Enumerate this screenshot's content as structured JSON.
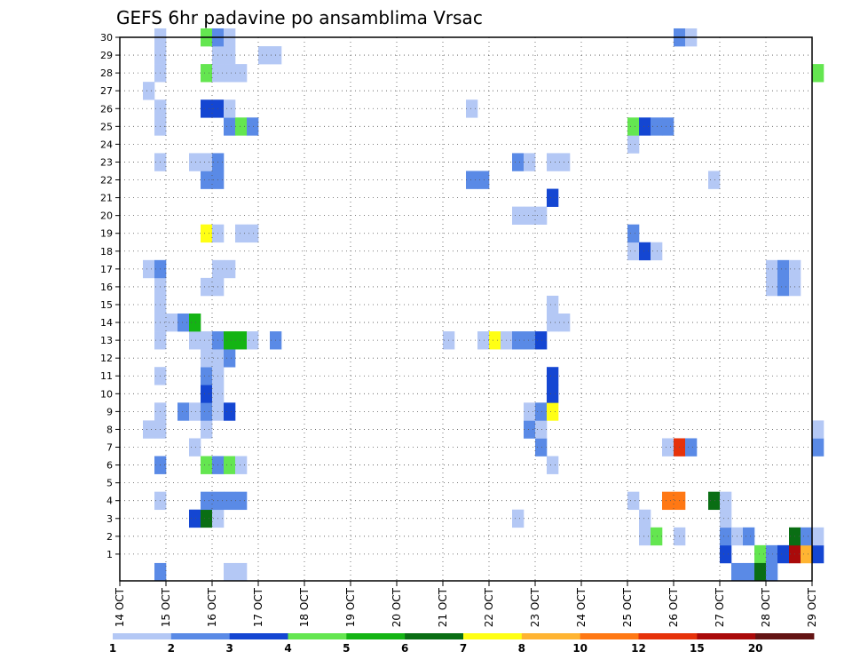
{
  "chart_data": {
    "type": "heatmap",
    "title": "GEFS 6hr padavine po ansamblima Vrsac",
    "xlabel": "",
    "ylabel": "",
    "x_range": [
      "14 OCT",
      "29 OCT"
    ],
    "y_range": [
      0,
      30
    ],
    "grid": true,
    "x_ticks": [
      "14 OCT",
      "15 OCT",
      "16 OCT",
      "17 OCT",
      "18 OCT",
      "19 OCT",
      "20 OCT",
      "21 OCT",
      "22 OCT",
      "23 OCT",
      "24 OCT",
      "25 OCT",
      "26 OCT",
      "27 OCT",
      "28 OCT",
      "29 OCT"
    ],
    "y_ticks": [
      1,
      2,
      3,
      4,
      5,
      6,
      7,
      8,
      9,
      10,
      11,
      12,
      13,
      14,
      15,
      16,
      17,
      18,
      19,
      20,
      21,
      22,
      23,
      24,
      25,
      26,
      27,
      28,
      29,
      30
    ],
    "colorbar": {
      "labels": [
        "1",
        "2",
        "3",
        "4",
        "5",
        "6",
        "7",
        "8",
        "10",
        "12",
        "15",
        "20"
      ],
      "colors": [
        "#b4c8f5",
        "#5a8ae6",
        "#1446d2",
        "#64e650",
        "#14b414",
        "#0a6e14",
        "#ffff14",
        "#ffb432",
        "#ff7814",
        "#e6320a",
        "#aa0a0a",
        "#641414"
      ]
    },
    "cells": [
      {
        "member": 1,
        "from": "27 OCT 00Z",
        "level": 3
      },
      {
        "member": 1,
        "from": "27 OCT 18Z",
        "level": 4
      },
      {
        "member": 1,
        "from": "28 OCT 00Z",
        "level": 2
      },
      {
        "member": 1,
        "from": "28 OCT 06Z",
        "level": 3
      },
      {
        "member": 1,
        "from": "28 OCT 12Z",
        "level": 11
      },
      {
        "member": 1,
        "from": "28 OCT 18Z",
        "level": 8
      },
      {
        "member": 1,
        "from": "29 OCT 00Z",
        "level": 3
      },
      {
        "member": 2,
        "from": "25 OCT 06Z",
        "level": 1
      },
      {
        "member": 2,
        "from": "25 OCT 12Z",
        "level": 4
      },
      {
        "member": 2,
        "from": "26 OCT 00Z",
        "level": 1
      },
      {
        "member": 2,
        "from": "27 OCT 00Z",
        "level": 2
      },
      {
        "member": 2,
        "from": "27 OCT 06Z",
        "level": 1
      },
      {
        "member": 2,
        "from": "27 OCT 12Z",
        "level": 2
      },
      {
        "member": 2,
        "from": "28 OCT 12Z",
        "level": 6
      },
      {
        "member": 2,
        "from": "28 OCT 18Z",
        "level": 2
      },
      {
        "member": 2,
        "from": "29 OCT 00Z",
        "level": 1
      },
      {
        "member": 3,
        "from": "15 OCT 12Z",
        "level": 3
      },
      {
        "member": 3,
        "from": "15 OCT 18Z",
        "level": 6
      },
      {
        "member": 3,
        "from": "16 OCT 00Z",
        "level": 1
      },
      {
        "member": 3,
        "from": "22 OCT 12Z",
        "level": 1
      },
      {
        "member": 3,
        "from": "25 OCT 06Z",
        "level": 1
      },
      {
        "member": 3,
        "from": "27 OCT 00Z",
        "level": 1
      },
      {
        "member": 4,
        "from": "14 OCT 18Z",
        "level": 1
      },
      {
        "member": 4,
        "from": "15 OCT 18Z",
        "level": 2
      },
      {
        "member": 4,
        "from": "16 OCT 00Z",
        "level": 2
      },
      {
        "member": 4,
        "from": "16 OCT 06Z",
        "level": 2
      },
      {
        "member": 4,
        "from": "16 OCT 12Z",
        "level": 2
      },
      {
        "member": 4,
        "from": "25 OCT 00Z",
        "level": 1
      },
      {
        "member": 4,
        "from": "25 OCT 18Z",
        "level": 9
      },
      {
        "member": 4,
        "from": "26 OCT 00Z",
        "level": 9
      },
      {
        "member": 4,
        "from": "26 OCT 18Z",
        "level": 6
      },
      {
        "member": 4,
        "from": "27 OCT 00Z",
        "level": 1
      },
      {
        "member": 6,
        "from": "14 OCT 18Z",
        "level": 2
      },
      {
        "member": 6,
        "from": "15 OCT 18Z",
        "level": 4
      },
      {
        "member": 6,
        "from": "16 OCT 00Z",
        "level": 2
      },
      {
        "member": 6,
        "from": "16 OCT 06Z",
        "level": 4
      },
      {
        "member": 6,
        "from": "16 OCT 12Z",
        "level": 1
      },
      {
        "member": 6,
        "from": "23 OCT 06Z",
        "level": 1
      },
      {
        "member": 7,
        "from": "15 OCT 12Z",
        "level": 1
      },
      {
        "member": 7,
        "from": "23 OCT 00Z",
        "level": 2
      },
      {
        "member": 7,
        "from": "25 OCT 18Z",
        "level": 1
      },
      {
        "member": 7,
        "from": "26 OCT 00Z",
        "level": 10
      },
      {
        "member": 7,
        "from": "26 OCT 06Z",
        "level": 2
      },
      {
        "member": 7,
        "from": "29 OCT 00Z",
        "level": 2
      },
      {
        "member": 8,
        "from": "14 OCT 12Z",
        "level": 1
      },
      {
        "member": 8,
        "from": "14 OCT 18Z",
        "level": 1
      },
      {
        "member": 8,
        "from": "15 OCT 18Z",
        "level": 1
      },
      {
        "member": 8,
        "from": "22 OCT 18Z",
        "level": 2
      },
      {
        "member": 8,
        "from": "23 OCT 00Z",
        "level": 1
      },
      {
        "member": 8,
        "from": "29 OCT 00Z",
        "level": 1
      },
      {
        "member": 9,
        "from": "14 OCT 18Z",
        "level": 1
      },
      {
        "member": 9,
        "from": "15 OCT 06Z",
        "level": 2
      },
      {
        "member": 9,
        "from": "15 OCT 12Z",
        "level": 1
      },
      {
        "member": 9,
        "from": "15 OCT 18Z",
        "level": 2
      },
      {
        "member": 9,
        "from": "16 OCT 00Z",
        "level": 1
      },
      {
        "member": 9,
        "from": "16 OCT 06Z",
        "level": 3
      },
      {
        "member": 9,
        "from": "22 OCT 18Z",
        "level": 1
      },
      {
        "member": 9,
        "from": "23 OCT 00Z",
        "level": 2
      },
      {
        "member": 9,
        "from": "23 OCT 06Z",
        "level": 7
      },
      {
        "member": 10,
        "from": "15 OCT 18Z",
        "level": 3
      },
      {
        "member": 10,
        "from": "16 OCT 00Z",
        "level": 1
      },
      {
        "member": 10,
        "from": "23 OCT 06Z",
        "level": 3
      },
      {
        "member": 11,
        "from": "14 OCT 18Z",
        "level": 1
      },
      {
        "member": 11,
        "from": "15 OCT 18Z",
        "level": 2
      },
      {
        "member": 11,
        "from": "16 OCT 00Z",
        "level": 1
      },
      {
        "member": 11,
        "from": "23 OCT 06Z",
        "level": 3
      },
      {
        "member": 12,
        "from": "15 OCT 18Z",
        "level": 1
      },
      {
        "member": 12,
        "from": "16 OCT 00Z",
        "level": 1
      },
      {
        "member": 12,
        "from": "16 OCT 06Z",
        "level": 2
      },
      {
        "member": 13,
        "from": "14 OCT 18Z",
        "level": 1
      },
      {
        "member": 13,
        "from": "15 OCT 12Z",
        "level": 1
      },
      {
        "member": 13,
        "from": "15 OCT 18Z",
        "level": 1
      },
      {
        "member": 13,
        "from": "16 OCT 00Z",
        "level": 2
      },
      {
        "member": 13,
        "from": "16 OCT 06Z",
        "level": 5
      },
      {
        "member": 13,
        "from": "16 OCT 12Z",
        "level": 5
      },
      {
        "member": 13,
        "from": "16 OCT 18Z",
        "level": 1
      },
      {
        "member": 13,
        "from": "17 OCT 06Z",
        "level": 2
      },
      {
        "member": 13,
        "from": "21 OCT 00Z",
        "level": 1
      },
      {
        "member": 13,
        "from": "21 OCT 18Z",
        "level": 1
      },
      {
        "member": 13,
        "from": "22 OCT 00Z",
        "level": 7
      },
      {
        "member": 13,
        "from": "22 OCT 06Z",
        "level": 1
      },
      {
        "member": 13,
        "from": "22 OCT 12Z",
        "level": 2
      },
      {
        "member": 13,
        "from": "22 OCT 18Z",
        "level": 2
      },
      {
        "member": 13,
        "from": "23 OCT 00Z",
        "level": 3
      },
      {
        "member": 14,
        "from": "14 OCT 18Z",
        "level": 1
      },
      {
        "member": 14,
        "from": "15 OCT 00Z",
        "level": 1
      },
      {
        "member": 14,
        "from": "15 OCT 06Z",
        "level": 2
      },
      {
        "member": 14,
        "from": "15 OCT 12Z",
        "level": 5
      },
      {
        "member": 14,
        "from": "23 OCT 06Z",
        "level": 1
      },
      {
        "member": 14,
        "from": "23 OCT 12Z",
        "level": 1
      },
      {
        "member": 15,
        "from": "14 OCT 18Z",
        "level": 1
      },
      {
        "member": 15,
        "from": "23 OCT 06Z",
        "level": 1
      },
      {
        "member": 16,
        "from": "14 OCT 18Z",
        "level": 1
      },
      {
        "member": 16,
        "from": "15 OCT 18Z",
        "level": 1
      },
      {
        "member": 16,
        "from": "16 OCT 00Z",
        "level": 1
      },
      {
        "member": 16,
        "from": "28 OCT 00Z",
        "level": 1
      },
      {
        "member": 16,
        "from": "28 OCT 06Z",
        "level": 2
      },
      {
        "member": 16,
        "from": "28 OCT 12Z",
        "level": 1
      },
      {
        "member": 17,
        "from": "14 OCT 12Z",
        "level": 1
      },
      {
        "member": 17,
        "from": "14 OCT 18Z",
        "level": 2
      },
      {
        "member": 17,
        "from": "16 OCT 00Z",
        "level": 1
      },
      {
        "member": 17,
        "from": "16 OCT 06Z",
        "level": 1
      },
      {
        "member": 17,
        "from": "28 OCT 00Z",
        "level": 1
      },
      {
        "member": 17,
        "from": "28 OCT 06Z",
        "level": 2
      },
      {
        "member": 17,
        "from": "28 OCT 12Z",
        "level": 1
      },
      {
        "member": 18,
        "from": "25 OCT 00Z",
        "level": 1
      },
      {
        "member": 18,
        "from": "25 OCT 06Z",
        "level": 3
      },
      {
        "member": 18,
        "from": "25 OCT 12Z",
        "level": 1
      },
      {
        "member": 19,
        "from": "15 OCT 18Z",
        "level": 7
      },
      {
        "member": 19,
        "from": "16 OCT 00Z",
        "level": 1
      },
      {
        "member": 19,
        "from": "16 OCT 12Z",
        "level": 1
      },
      {
        "member": 19,
        "from": "16 OCT 18Z",
        "level": 1
      },
      {
        "member": 19,
        "from": "25 OCT 00Z",
        "level": 2
      },
      {
        "member": 20,
        "from": "22 OCT 12Z",
        "level": 1
      },
      {
        "member": 20,
        "from": "22 OCT 18Z",
        "level": 1
      },
      {
        "member": 20,
        "from": "23 OCT 00Z",
        "level": 1
      },
      {
        "member": 21,
        "from": "23 OCT 06Z",
        "level": 3
      },
      {
        "member": 22,
        "from": "15 OCT 18Z",
        "level": 2
      },
      {
        "member": 22,
        "from": "16 OCT 00Z",
        "level": 2
      },
      {
        "member": 22,
        "from": "21 OCT 12Z",
        "level": 2
      },
      {
        "member": 22,
        "from": "21 OCT 18Z",
        "level": 2
      },
      {
        "member": 22,
        "from": "26 OCT 18Z",
        "level": 1
      },
      {
        "member": 23,
        "from": "14 OCT 18Z",
        "level": 1
      },
      {
        "member": 23,
        "from": "15 OCT 12Z",
        "level": 1
      },
      {
        "member": 23,
        "from": "15 OCT 18Z",
        "level": 1
      },
      {
        "member": 23,
        "from": "16 OCT 00Z",
        "level": 2
      },
      {
        "member": 23,
        "from": "22 OCT 12Z",
        "level": 2
      },
      {
        "member": 23,
        "from": "22 OCT 18Z",
        "level": 1
      },
      {
        "member": 23,
        "from": "23 OCT 06Z",
        "level": 1
      },
      {
        "member": 23,
        "from": "23 OCT 12Z",
        "level": 1
      },
      {
        "member": 24,
        "from": "25 OCT 00Z",
        "level": 1
      },
      {
        "member": 25,
        "from": "14 OCT 18Z",
        "level": 1
      },
      {
        "member": 25,
        "from": "16 OCT 06Z",
        "level": 2
      },
      {
        "member": 25,
        "from": "16 OCT 12Z",
        "level": 4
      },
      {
        "member": 25,
        "from": "16 OCT 18Z",
        "level": 2
      },
      {
        "member": 25,
        "from": "25 OCT 00Z",
        "level": 4
      },
      {
        "member": 25,
        "from": "25 OCT 06Z",
        "level": 3
      },
      {
        "member": 25,
        "from": "25 OCT 12Z",
        "level": 2
      },
      {
        "member": 25,
        "from": "25 OCT 18Z",
        "level": 2
      },
      {
        "member": 26,
        "from": "14 OCT 18Z",
        "level": 1
      },
      {
        "member": 26,
        "from": "15 OCT 18Z",
        "level": 3
      },
      {
        "member": 26,
        "from": "16 OCT 00Z",
        "level": 3
      },
      {
        "member": 26,
        "from": "16 OCT 06Z",
        "level": 1
      },
      {
        "member": 26,
        "from": "21 OCT 12Z",
        "level": 1
      },
      {
        "member": 27,
        "from": "14 OCT 12Z",
        "level": 1
      },
      {
        "member": 28,
        "from": "14 OCT 18Z",
        "level": 1
      },
      {
        "member": 28,
        "from": "15 OCT 18Z",
        "level": 4
      },
      {
        "member": 28,
        "from": "16 OCT 00Z",
        "level": 1
      },
      {
        "member": 28,
        "from": "16 OCT 06Z",
        "level": 1
      },
      {
        "member": 28,
        "from": "16 OCT 12Z",
        "level": 1
      },
      {
        "member": 28,
        "from": "29 OCT 00Z",
        "level": 4
      },
      {
        "member": 29,
        "from": "14 OCT 18Z",
        "level": 1
      },
      {
        "member": 29,
        "from": "16 OCT 00Z",
        "level": 1
      },
      {
        "member": 29,
        "from": "16 OCT 06Z",
        "level": 1
      },
      {
        "member": 29,
        "from": "17 OCT 00Z",
        "level": 1
      },
      {
        "member": 29,
        "from": "17 OCT 06Z",
        "level": 1
      },
      {
        "member": 30,
        "from": "14 OCT 18Z",
        "level": 1
      },
      {
        "member": 30,
        "from": "15 OCT 18Z",
        "level": 4
      },
      {
        "member": 30,
        "from": "16 OCT 00Z",
        "level": 2
      },
      {
        "member": 30,
        "from": "16 OCT 06Z",
        "level": 1
      },
      {
        "member": 30,
        "from": "26 OCT 00Z",
        "level": 2
      },
      {
        "member": 30,
        "from": "26 OCT 06Z",
        "level": 1
      },
      {
        "member": 0,
        "from": "14 OCT 18Z",
        "level": 2
      },
      {
        "member": 0,
        "from": "16 OCT 06Z",
        "level": 1
      },
      {
        "member": 0,
        "from": "16 OCT 12Z",
        "level": 1
      },
      {
        "member": 0,
        "from": "27 OCT 06Z",
        "level": 2
      },
      {
        "member": 0,
        "from": "27 OCT 12Z",
        "level": 2
      },
      {
        "member": 0,
        "from": "27 OCT 18Z",
        "level": 6
      },
      {
        "member": 0,
        "from": "28 OCT 00Z",
        "level": 2
      }
    ]
  }
}
